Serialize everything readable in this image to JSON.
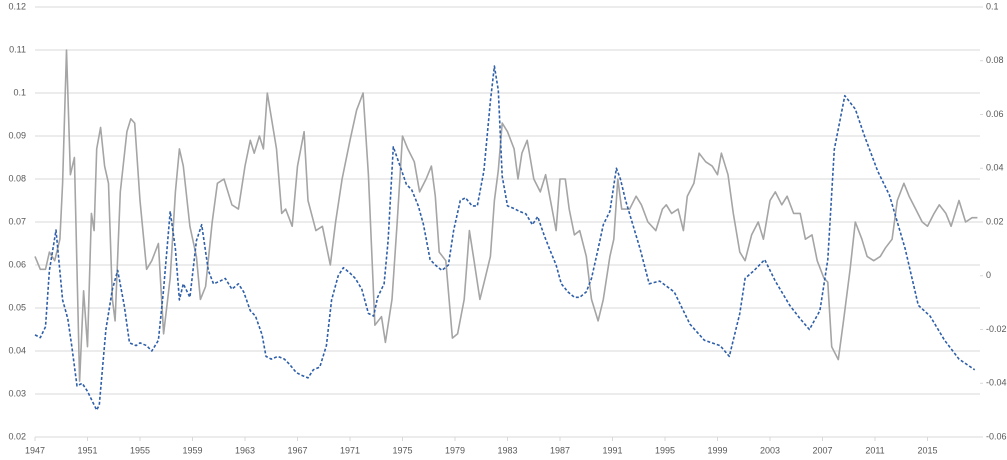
{
  "chart_data": {
    "type": "line",
    "xlim": [
      1947,
      2019
    ],
    "xticks": [
      1947,
      1951,
      1955,
      1959,
      1963,
      1967,
      1971,
      1975,
      1979,
      1983,
      1987,
      1991,
      1995,
      1999,
      2003,
      2007,
      2011,
      2015
    ],
    "ylim": [
      0.02,
      0.12
    ],
    "yticks": [
      0.02,
      0.03,
      0.04,
      0.05,
      0.06,
      0.07,
      0.08,
      0.09,
      0.1,
      0.11,
      0.12
    ],
    "y2lim": [
      -0.06,
      0.1
    ],
    "y2ticks": [
      -0.06,
      -0.04,
      -0.02,
      0,
      0.02,
      0.04,
      0.06,
      0.08,
      0.1
    ],
    "grid": true,
    "series": [
      {
        "color": "#a5a5a5",
        "dash": false,
        "x": [
          1947.0,
          1947.4,
          1947.8,
          1948.1,
          1948.5,
          1948.9,
          1949.1,
          1949.4,
          1949.7,
          1950.0,
          1950.4,
          1950.7,
          1951.0,
          1951.3,
          1951.5,
          1951.7,
          1952.0,
          1952.3,
          1952.6,
          1952.9,
          1953.1,
          1953.5,
          1954.0,
          1954.3,
          1954.6,
          1955.0,
          1955.5,
          1955.9,
          1956.4,
          1956.8,
          1957.3,
          1957.7,
          1958.0,
          1958.3,
          1958.8,
          1959.3,
          1959.6,
          1960.0,
          1960.5,
          1960.9,
          1961.4,
          1962.0,
          1962.5,
          1963.0,
          1963.4,
          1963.7,
          1964.1,
          1964.4,
          1964.7,
          1965.4,
          1965.8,
          1966.1,
          1966.6,
          1967.0,
          1967.5,
          1967.8,
          1968.4,
          1968.9,
          1969.5,
          1969.9,
          1970.4,
          1971.0,
          1971.5,
          1972.0,
          1972.4,
          1972.9,
          1973.4,
          1973.7,
          1974.2,
          1974.6,
          1975.0,
          1975.4,
          1975.9,
          1976.3,
          1976.8,
          1977.2,
          1977.5,
          1977.8,
          1978.3,
          1978.8,
          1979.2,
          1979.7,
          1980.1,
          1980.4,
          1980.9,
          1981.3,
          1981.7,
          1982.0,
          1982.3,
          1982.6,
          1983.0,
          1983.5,
          1983.8,
          1984.1,
          1984.5,
          1985.0,
          1985.5,
          1985.9,
          1986.4,
          1986.7,
          1987.0,
          1987.4,
          1987.7,
          1988.1,
          1988.5,
          1989.0,
          1989.4,
          1989.9,
          1990.3,
          1990.8,
          1991.1,
          1991.4,
          1991.7,
          1992.3,
          1992.8,
          1993.2,
          1993.7,
          1994.3,
          1994.8,
          1995.1,
          1995.5,
          1996.0,
          1996.4,
          1996.7,
          1997.2,
          1997.6,
          1998.1,
          1998.6,
          1999.0,
          1999.3,
          1999.8,
          2000.2,
          2000.7,
          2001.1,
          2001.6,
          2002.1,
          2002.5,
          2003.0,
          2003.4,
          2003.9,
          2004.3,
          2004.8,
          2005.3,
          2005.7,
          2006.2,
          2006.6,
          2007.1,
          2007.4,
          2007.7,
          2008.2,
          2008.6,
          2009.1,
          2009.5,
          2010.0,
          2010.4,
          2010.9,
          2011.4,
          2011.8,
          2012.3,
          2012.7,
          2013.2,
          2013.6,
          2014.1,
          2014.6,
          2015.0,
          2015.5,
          2015.9,
          2016.4,
          2016.8,
          2017.4,
          2017.9,
          2018.4,
          2018.8
        ],
        "values": [
          0.062,
          0.059,
          0.059,
          0.063,
          0.061,
          0.066,
          0.079,
          0.11,
          0.081,
          0.085,
          0.033,
          0.054,
          0.041,
          0.072,
          0.068,
          0.087,
          0.092,
          0.083,
          0.079,
          0.052,
          0.047,
          0.077,
          0.091,
          0.094,
          0.093,
          0.075,
          0.059,
          0.061,
          0.065,
          0.044,
          0.057,
          0.077,
          0.087,
          0.083,
          0.069,
          0.062,
          0.052,
          0.055,
          0.07,
          0.079,
          0.08,
          0.074,
          0.073,
          0.083,
          0.089,
          0.086,
          0.09,
          0.087,
          0.1,
          0.087,
          0.072,
          0.073,
          0.069,
          0.083,
          0.091,
          0.075,
          0.068,
          0.069,
          0.06,
          0.07,
          0.08,
          0.089,
          0.096,
          0.1,
          0.081,
          0.046,
          0.048,
          0.042,
          0.052,
          0.07,
          0.09,
          0.087,
          0.084,
          0.077,
          0.08,
          0.083,
          0.076,
          0.063,
          0.061,
          0.043,
          0.044,
          0.052,
          0.068,
          0.062,
          0.052,
          0.057,
          0.062,
          0.075,
          0.082,
          0.093,
          0.091,
          0.087,
          0.08,
          0.086,
          0.089,
          0.08,
          0.077,
          0.081,
          0.073,
          0.068,
          0.08,
          0.08,
          0.073,
          0.067,
          0.068,
          0.062,
          0.052,
          0.047,
          0.052,
          0.062,
          0.066,
          0.08,
          0.073,
          0.073,
          0.076,
          0.074,
          0.07,
          0.068,
          0.073,
          0.074,
          0.072,
          0.073,
          0.068,
          0.076,
          0.079,
          0.086,
          0.084,
          0.083,
          0.081,
          0.086,
          0.081,
          0.072,
          0.063,
          0.061,
          0.067,
          0.07,
          0.066,
          0.075,
          0.077,
          0.074,
          0.076,
          0.072,
          0.072,
          0.066,
          0.067,
          0.061,
          0.057,
          0.056,
          0.041,
          0.038,
          0.047,
          0.059,
          0.07,
          0.066,
          0.062,
          0.061,
          0.062,
          0.064,
          0.066,
          0.075,
          0.079,
          0.076,
          0.073,
          0.07,
          0.069,
          0.072,
          0.074,
          0.072,
          0.069,
          0.075,
          0.07,
          0.071,
          0.071
        ]
      },
      {
        "color": "#2e5fa8",
        "dash": true,
        "axis": "y2",
        "x": [
          1947.0,
          1947.4,
          1947.8,
          1948.1,
          1948.6,
          1949.1,
          1949.5,
          1949.8,
          1950.2,
          1950.6,
          1951.0,
          1951.3,
          1951.7,
          1951.9,
          1952.4,
          1952.9,
          1953.3,
          1953.8,
          1954.2,
          1954.7,
          1955.0,
          1955.5,
          1955.9,
          1956.4,
          1956.8,
          1957.3,
          1957.7,
          1958.0,
          1958.3,
          1958.8,
          1959.3,
          1959.7,
          1960.2,
          1960.6,
          1961.1,
          1961.5,
          1962.0,
          1962.5,
          1962.9,
          1963.4,
          1963.8,
          1964.3,
          1964.6,
          1965.0,
          1965.5,
          1966.0,
          1966.4,
          1966.9,
          1967.3,
          1967.8,
          1968.2,
          1968.7,
          1969.2,
          1969.6,
          1970.1,
          1970.5,
          1971.0,
          1971.4,
          1971.9,
          1972.4,
          1972.8,
          1973.1,
          1973.6,
          1973.9,
          1974.3,
          1974.8,
          1975.3,
          1975.7,
          1976.2,
          1976.6,
          1977.1,
          1977.5,
          1978.0,
          1978.5,
          1978.9,
          1979.4,
          1979.8,
          1980.3,
          1980.7,
          1981.2,
          1981.7,
          1982.0,
          1982.3,
          1982.6,
          1983.0,
          1983.5,
          1983.9,
          1984.4,
          1984.9,
          1985.3,
          1985.8,
          1986.2,
          1986.7,
          1987.1,
          1987.6,
          1988.1,
          1988.5,
          1989.0,
          1989.4,
          1989.9,
          1990.3,
          1990.8,
          1991.3,
          1991.6,
          1992.0,
          1993.1,
          1993.8,
          1994.6,
          1995.7,
          1996.9,
          1998.0,
          1999.2,
          1999.9,
          2000.7,
          2001.1,
          2001.8,
          2002.6,
          2003.4,
          2004.5,
          2005.3,
          2006.0,
          2006.8,
          2007.4,
          2007.9,
          2008.7,
          2009.5,
          2010.2,
          2011.2,
          2012.1,
          2013.3,
          2014.3,
          2015.2,
          2016.3,
          2017.4,
          2018.6
        ],
        "values": [
          -0.022,
          -0.023,
          -0.019,
          0.002,
          0.017,
          -0.009,
          -0.016,
          -0.026,
          -0.041,
          -0.04,
          -0.043,
          -0.046,
          -0.05,
          -0.048,
          -0.02,
          -0.005,
          0.002,
          -0.011,
          -0.025,
          -0.026,
          -0.025,
          -0.026,
          -0.028,
          -0.024,
          -0.005,
          0.024,
          0.01,
          -0.009,
          -0.003,
          -0.008,
          0.013,
          0.019,
          0.002,
          -0.003,
          -0.002,
          -0.001,
          -0.005,
          -0.003,
          -0.006,
          -0.013,
          -0.015,
          -0.022,
          -0.03,
          -0.031,
          -0.03,
          -0.031,
          -0.033,
          -0.036,
          -0.037,
          -0.038,
          -0.035,
          -0.034,
          -0.026,
          -0.009,
          0.0,
          0.003,
          0.001,
          -0.001,
          -0.005,
          -0.014,
          -0.015,
          -0.008,
          -0.003,
          0.013,
          0.048,
          0.041,
          0.034,
          0.032,
          0.026,
          0.019,
          0.006,
          0.004,
          0.002,
          0.004,
          0.017,
          0.028,
          0.029,
          0.026,
          0.026,
          0.039,
          0.065,
          0.078,
          0.069,
          0.037,
          0.026,
          0.025,
          0.024,
          0.023,
          0.019,
          0.022,
          0.015,
          0.01,
          0.004,
          -0.003,
          -0.006,
          -0.008,
          -0.008,
          -0.006,
          -0.001,
          0.01,
          0.019,
          0.024,
          0.04,
          0.036,
          0.028,
          0.01,
          -0.003,
          -0.002,
          -0.006,
          -0.018,
          -0.024,
          -0.026,
          -0.03,
          -0.014,
          -0.001,
          0.002,
          0.006,
          -0.002,
          -0.011,
          -0.016,
          -0.02,
          -0.013,
          0.006,
          0.047,
          0.067,
          0.062,
          0.052,
          0.039,
          0.03,
          0.01,
          -0.011,
          -0.015,
          -0.024,
          -0.031,
          -0.035
        ]
      }
    ]
  }
}
